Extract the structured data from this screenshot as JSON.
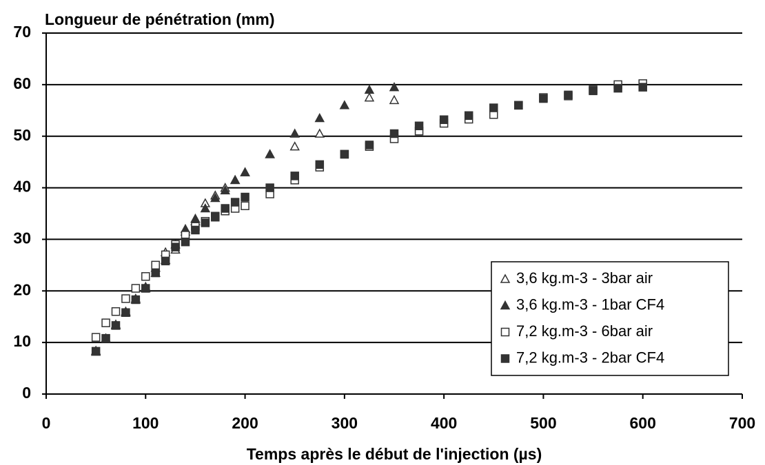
{
  "chart_data": {
    "type": "scatter",
    "title": "Longueur de pénétration (mm)",
    "x_label": "Temps après le début de l'injection (µs)",
    "xlim": [
      0,
      700
    ],
    "xticks": [
      0,
      100,
      200,
      300,
      400,
      500,
      600,
      700
    ],
    "ylim": [
      0,
      70
    ],
    "yticks": [
      0,
      10,
      20,
      30,
      40,
      50,
      60,
      70
    ],
    "grid": true,
    "legend": "lower right",
    "series": [
      {
        "name": "3,6 kg.m-3 - 3bar air",
        "color": "#333333",
        "marker": "triangle-open",
        "x": [
          50,
          60,
          70,
          80,
          90,
          100,
          110,
          120,
          130,
          140,
          150,
          160,
          170,
          180,
          190,
          200,
          225,
          250,
          275,
          325,
          350
        ],
        "values": [
          8.4,
          10.8,
          13.5,
          16,
          18.5,
          20.8,
          24.5,
          27.5,
          28,
          31.5,
          33.5,
          37,
          38.5,
          40,
          41.5,
          43,
          46.5,
          48,
          50.5,
          57.5,
          57
        ]
      },
      {
        "name": "3,6 kg.m-3 - 1bar CF4",
        "color": "#333333",
        "marker": "triangle-filled",
        "x": [
          50,
          60,
          70,
          80,
          90,
          100,
          110,
          120,
          130,
          140,
          150,
          160,
          170,
          180,
          190,
          200,
          225,
          250,
          275,
          300,
          325,
          350
        ],
        "values": [
          8.2,
          10.8,
          13.3,
          15.8,
          18.3,
          20.5,
          23.5,
          26,
          29,
          32,
          34,
          36,
          38,
          39.5,
          41.5,
          43,
          46.5,
          50.5,
          53.5,
          56,
          59,
          59.5
        ]
      },
      {
        "name": "7,2 kg.m-3 - 6bar air",
        "color": "#333333",
        "marker": "square-open",
        "x": [
          50,
          60,
          70,
          80,
          90,
          100,
          110,
          120,
          130,
          140,
          150,
          160,
          170,
          180,
          190,
          200,
          225,
          250,
          275,
          300,
          325,
          350,
          375,
          400,
          425,
          450,
          475,
          500,
          525,
          550,
          575,
          600
        ],
        "values": [
          11,
          13.8,
          16,
          18.5,
          20.5,
          22.8,
          25,
          27,
          29,
          30.8,
          32.5,
          33.5,
          34.5,
          35.5,
          36,
          36.5,
          38.8,
          41.5,
          44,
          46.5,
          48,
          49.5,
          51,
          52.5,
          53.3,
          54.2,
          56,
          57.5,
          57.8,
          59,
          60,
          60.2
        ]
      },
      {
        "name": "7,2 kg.m-3 - 2bar CF4",
        "color": "#333333",
        "marker": "square-filled",
        "x": [
          50,
          60,
          70,
          80,
          90,
          100,
          110,
          120,
          130,
          140,
          150,
          160,
          170,
          180,
          190,
          200,
          225,
          250,
          275,
          300,
          325,
          350,
          375,
          400,
          425,
          450,
          475,
          500,
          525,
          550,
          575,
          600
        ],
        "values": [
          8.3,
          10.8,
          13.3,
          15.8,
          18.3,
          20.5,
          23.5,
          25.8,
          28.5,
          29.5,
          31.8,
          33.2,
          34.3,
          36,
          37.2,
          38.2,
          40,
          42.3,
          44.5,
          46.5,
          48.3,
          50.5,
          52,
          53.2,
          54,
          55.5,
          56,
          57.3,
          58,
          58.8,
          59.3,
          59.5
        ]
      }
    ]
  }
}
